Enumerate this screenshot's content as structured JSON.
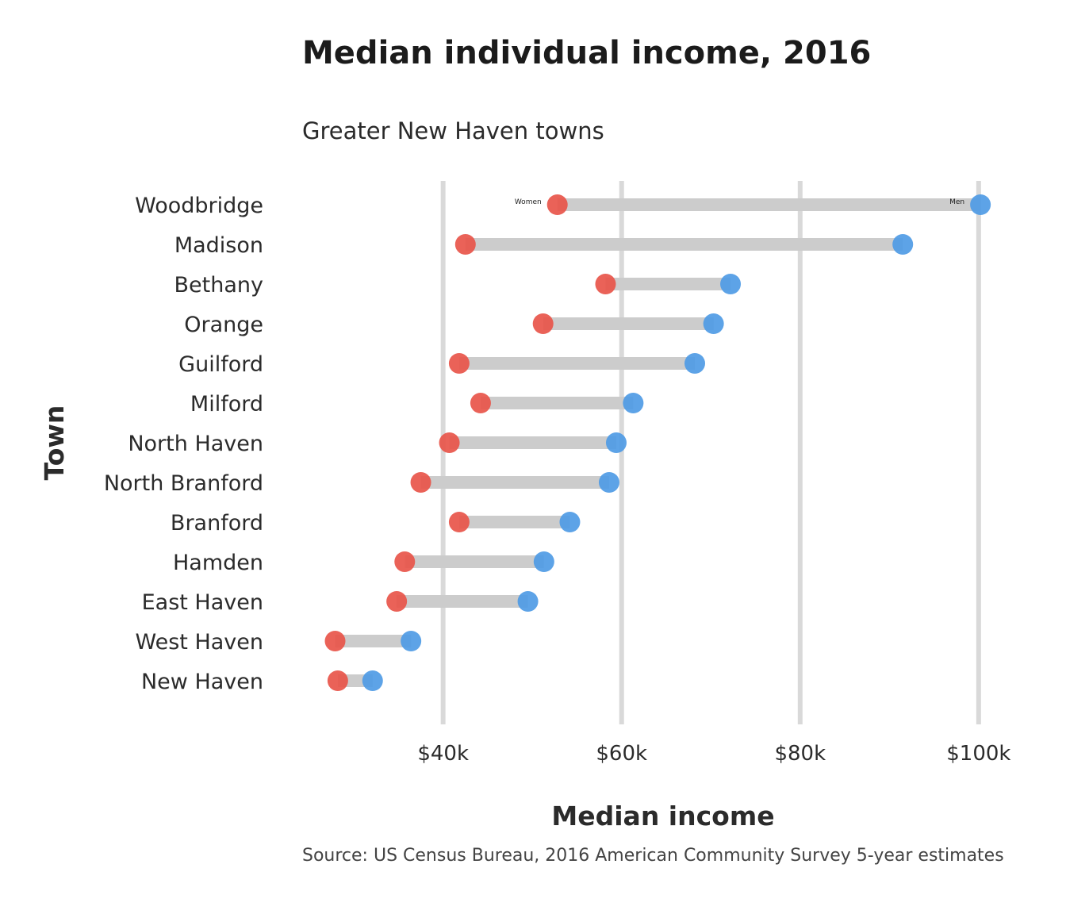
{
  "chart_data": {
    "type": "dumbbell",
    "title": "Median individual income, 2016",
    "subtitle": "Greater New Haven towns",
    "caption": "Source: US Census Bureau, 2016 American Community Survey 5-year estimates",
    "xlabel": "Median income",
    "ylabel": "Town",
    "xlim": [
      25900,
      102500
    ],
    "x_ticks": [
      40000,
      60000,
      80000,
      100000
    ],
    "x_tick_labels": [
      "$40k",
      "$60k",
      "$80k",
      "$100k"
    ],
    "grid": "vertical major gridlines",
    "categories": [
      "Woodbridge",
      "Madison",
      "Bethany",
      "Orange",
      "Guilford",
      "Milford",
      "North Haven",
      "North Branford",
      "Branford",
      "Hamden",
      "East Haven",
      "West Haven",
      "New Haven"
    ],
    "series": [
      {
        "name": "Women",
        "color": "#e8554a",
        "values": [
          52800,
          42500,
          58200,
          51200,
          41800,
          44200,
          40700,
          37500,
          41800,
          35700,
          34800,
          27900,
          28200
        ]
      },
      {
        "name": "Men",
        "color": "#4f9be5",
        "values": [
          100200,
          91500,
          72200,
          70300,
          68200,
          61300,
          59400,
          58600,
          54200,
          51300,
          49500,
          36400,
          32100
        ]
      }
    ],
    "bar_color": "#cccccc",
    "grid_color": "#d9d9d9"
  }
}
